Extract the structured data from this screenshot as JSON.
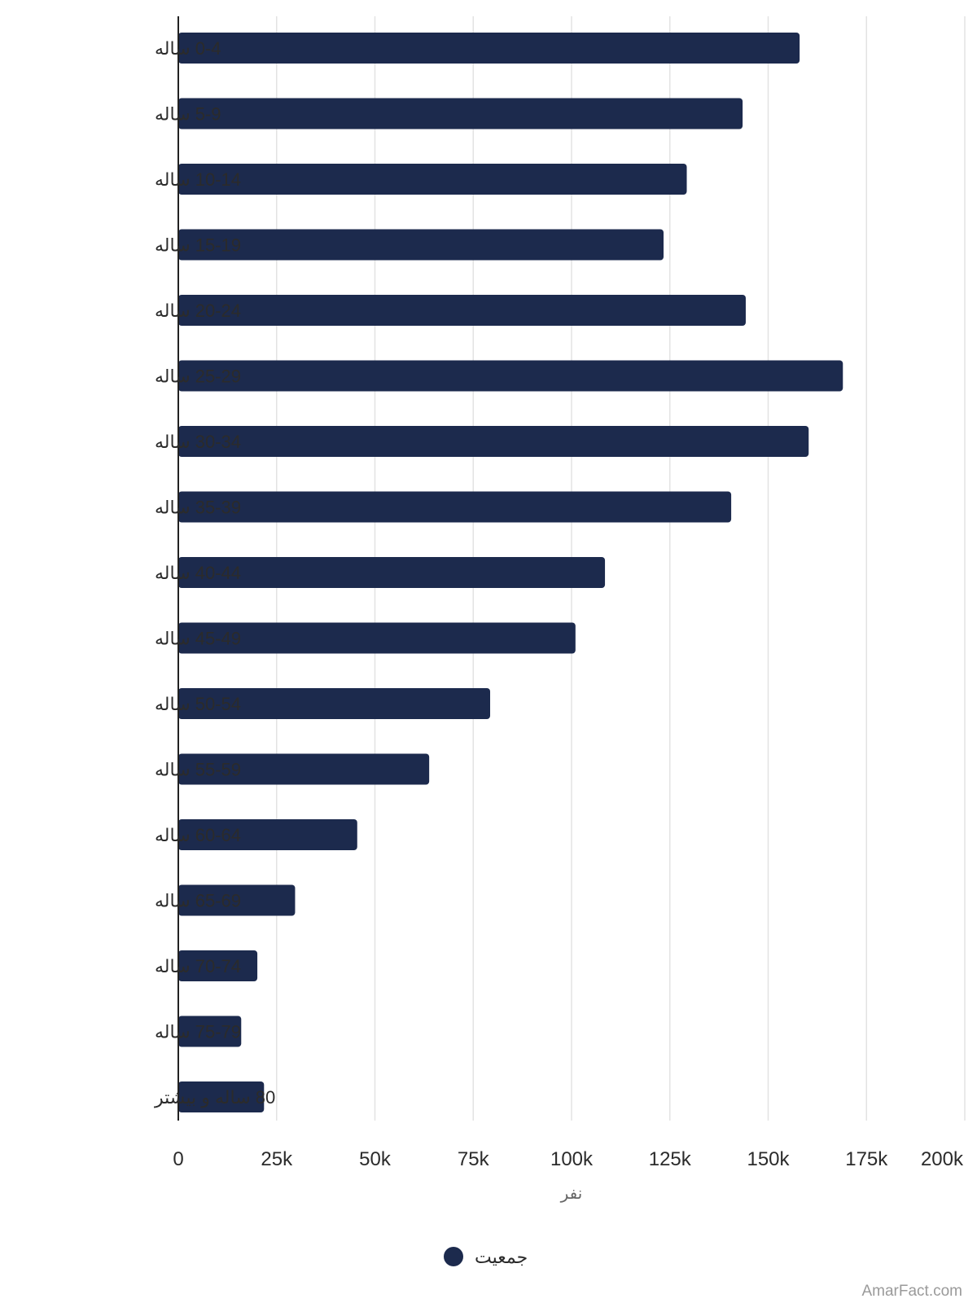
{
  "chart_data": {
    "type": "bar",
    "orientation": "horizontal",
    "categories": [
      "0-4 ساله",
      "5-9 ساله",
      "10-14 ساله",
      "15-19 ساله",
      "20-24 ساله",
      "25-29 ساله",
      "30-34 ساله",
      "35-39 ساله",
      "40-44 ساله",
      "45-49 ساله",
      "50-54 ساله",
      "55-59 ساله",
      "60-64 ساله",
      "65-69 ساله",
      "70-74 ساله",
      "75-79 ساله",
      "80 ساله و بیشتر"
    ],
    "series": [
      {
        "name": "جمعیت",
        "values": [
          158000,
          143500,
          129300,
          123400,
          144300,
          169000,
          160300,
          140600,
          108500,
          101000,
          79300,
          63800,
          45500,
          29700,
          20100,
          16000,
          21800
        ],
        "color": "#1c2a4d"
      }
    ],
    "x_ticks": [
      "0",
      "25k",
      "50k",
      "75k",
      "100k",
      "125k",
      "150k",
      "175k",
      "200k"
    ],
    "xlim": [
      0,
      200000
    ],
    "xlabel": "نفر",
    "ylabel": "",
    "title": "",
    "grid": true,
    "legend": {
      "position": "bottom",
      "label": "جمعیت"
    },
    "watermark": "AmarFact.com"
  }
}
